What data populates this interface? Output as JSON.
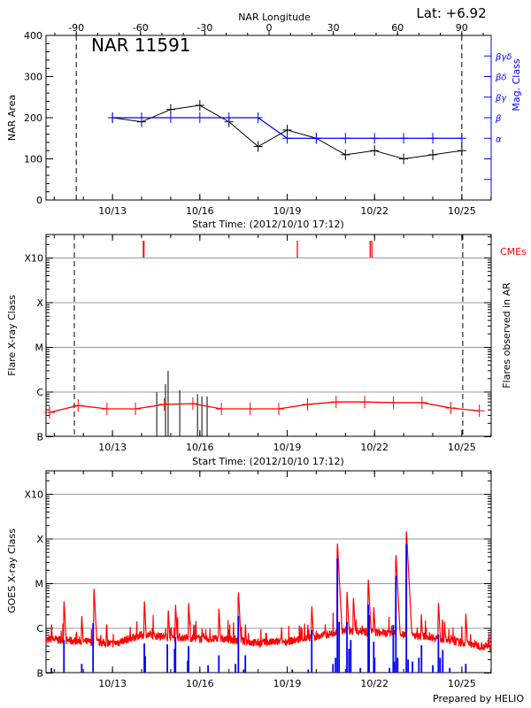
{
  "header": {
    "top_axis_title": "NAR Longitude",
    "latitude": "Lat:  +6.92",
    "region": "NAR 11591",
    "footer": "Prepared by HELIO"
  },
  "colors": {
    "area": "#000000",
    "mag_class": "#0000ff",
    "goes": "#ff0000",
    "events": "#0000ff",
    "cme": "#ff0000",
    "grid": "#999999"
  },
  "chart_data": [
    {
      "type": "line",
      "panel": "nar-area",
      "xlabel": "Start Time: (2012/10/10 17:12)",
      "ylabel": "NAR Area",
      "y2label": "Mag. Class",
      "x_unit": "day of October 2012",
      "xlim": [
        10.717,
        26.01
      ],
      "ylim": [
        0,
        400
      ],
      "yticks": [
        0,
        100,
        200,
        300,
        400
      ],
      "xticks": [
        {
          "t": 13,
          "label": "10/13"
        },
        {
          "t": 16,
          "label": "10/16"
        },
        {
          "t": 19,
          "label": "10/19"
        },
        {
          "t": 22,
          "label": "10/22"
        },
        {
          "t": 25,
          "label": "10/25"
        }
      ],
      "top_axis": {
        "ticks": [
          -90,
          -60,
          -30,
          0,
          30,
          60,
          90
        ],
        "limb_markers": [
          -90,
          90
        ]
      },
      "mag_class_ticks": [
        {
          "area": 50,
          "label": ""
        },
        {
          "area": 100,
          "label": ""
        },
        {
          "area": 150,
          "label": "α"
        },
        {
          "area": 200,
          "label": "β"
        },
        {
          "area": 250,
          "label": "βγ"
        },
        {
          "area": 300,
          "label": "βδ"
        },
        {
          "area": 350,
          "label": "βγδ"
        }
      ],
      "series": [
        {
          "key": "area",
          "x": [
            13,
            14,
            15,
            16,
            17,
            18,
            19,
            20,
            21,
            22,
            23,
            24,
            25
          ],
          "y": [
            200,
            190,
            220,
            230,
            190,
            130,
            170,
            150,
            110,
            120,
            100,
            110,
            120
          ]
        },
        {
          "key": "mag_class",
          "x": [
            13,
            14,
            15,
            16,
            17,
            18,
            19,
            20,
            21,
            22,
            23,
            24,
            25
          ],
          "y": [
            200,
            200,
            200,
            200,
            200,
            200,
            150,
            150,
            150,
            150,
            150,
            150,
            150
          ]
        }
      ]
    },
    {
      "type": "bar",
      "panel": "flare-class",
      "xlabel": "Start Time: (2012/10/10 17:12)",
      "ylabel": "Flare X-ray Class",
      "y2label": "Flares observed in AR",
      "cme_label": "CMEs",
      "y_scale": "log",
      "yticks": [
        "B",
        "C",
        "M",
        "X",
        "X10"
      ],
      "xlim": [
        10.717,
        26.01
      ],
      "limb_markers_t": [
        11.69,
        25.03
      ],
      "flares": [
        {
          "t": 14.52,
          "class": "C1.0"
        },
        {
          "t": 14.82,
          "class": "C1.5"
        },
        {
          "t": 14.91,
          "class": "C3.0"
        },
        {
          "t": 15.31,
          "class": "C1.1"
        },
        {
          "t": 15.92,
          "class": "B9.0"
        },
        {
          "t": 16.07,
          "class": "B8.0"
        },
        {
          "t": 16.25,
          "class": "B8.0"
        }
      ],
      "cmes": [
        14.06,
        14.08,
        19.35,
        21.85,
        21.91
      ],
      "background": {
        "t": [
          10.84,
          11.82,
          12.81,
          13.79,
          14.78,
          15.76,
          16.74,
          17.73,
          18.71,
          19.7,
          20.68,
          21.66,
          22.65,
          23.63,
          24.62,
          25.6
        ],
        "class": [
          "B3.5",
          "B5.0",
          "B4.2",
          "B4.2",
          "B5.3",
          "B5.5",
          "B4.2",
          "B4.2",
          "B4.2",
          "B5.3",
          "B6.0",
          "B6.0",
          "B5.8",
          "B5.8",
          "B4.4",
          "B3.8"
        ]
      }
    },
    {
      "type": "line",
      "panel": "goes",
      "ylabel": "GOES X-ray Class",
      "y_scale": "log",
      "yticks": [
        "B",
        "C",
        "M",
        "X",
        "X10"
      ],
      "xlim": [
        10.717,
        26.01
      ],
      "baseline": {
        "t": [
          10.72,
          11,
          12,
          13,
          14,
          15,
          16,
          17,
          18,
          19,
          20,
          21,
          22,
          23,
          24,
          25,
          26
        ],
        "class": [
          "B5.5",
          "B5.5",
          "B5.0",
          "B4.4",
          "B7.0",
          "B6.3",
          "B5.8",
          "B5.5",
          "B4.6",
          "B5.0",
          "B6.3",
          "B8.7",
          "B8.0",
          "B7.0",
          "B6.3",
          "B4.6",
          "B3.7"
        ]
      },
      "peaks": [
        {
          "t": 10.9,
          "class": "C1.5"
        },
        {
          "t": 11.33,
          "class": "C4.9"
        },
        {
          "t": 11.94,
          "class": "C2.3"
        },
        {
          "t": 12.36,
          "class": "C9.4"
        },
        {
          "t": 12.79,
          "class": "C1.5"
        },
        {
          "t": 14.09,
          "class": "C4.9"
        },
        {
          "t": 14.91,
          "class": "C3.1"
        },
        {
          "t": 15.16,
          "class": "C4.1"
        },
        {
          "t": 15.61,
          "class": "C4.5"
        },
        {
          "t": 16.07,
          "class": "C1.2"
        },
        {
          "t": 16.65,
          "class": "C3.4"
        },
        {
          "t": 17.32,
          "class": "C7.8"
        },
        {
          "t": 17.56,
          "class": "C1.5"
        },
        {
          "t": 18.8,
          "class": "C1.3"
        },
        {
          "t": 19.5,
          "class": "C1.2"
        },
        {
          "t": 19.84,
          "class": "C3.8"
        },
        {
          "t": 20.3,
          "class": "C1.5"
        },
        {
          "t": 20.72,
          "class": "M9.6"
        },
        {
          "t": 21.05,
          "class": "C8.0"
        },
        {
          "t": 21.27,
          "class": "C5.9"
        },
        {
          "t": 21.78,
          "class": "M1.5"
        },
        {
          "t": 21.97,
          "class": "C3.6"
        },
        {
          "t": 22.73,
          "class": "M5.3"
        },
        {
          "t": 23.09,
          "class": "X1.8"
        },
        {
          "t": 23.15,
          "class": "M1.2"
        },
        {
          "t": 23.6,
          "class": "C2.5"
        },
        {
          "t": 24.19,
          "class": "C4.5"
        },
        {
          "t": 24.4,
          "class": "C1.7"
        },
        {
          "t": 25.13,
          "class": "C2.6"
        }
      ],
      "events": [
        {
          "t": 10.9,
          "class": "B1.3"
        },
        {
          "t": 11.33,
          "class": "B5.5"
        },
        {
          "t": 11.94,
          "class": "B1.6"
        },
        {
          "t": 12.33,
          "class": "C1.3"
        },
        {
          "t": 14.09,
          "class": "B4.6"
        },
        {
          "t": 14.12,
          "class": "B2.4"
        },
        {
          "t": 14.88,
          "class": "B4.4"
        },
        {
          "t": 15.13,
          "class": "B3.5"
        },
        {
          "t": 15.16,
          "class": "B6.3"
        },
        {
          "t": 15.58,
          "class": "B1.9"
        },
        {
          "t": 15.61,
          "class": "B4.0"
        },
        {
          "t": 16.28,
          "class": "B1.5"
        },
        {
          "t": 16.65,
          "class": "B2.5"
        },
        {
          "t": 17.22,
          "class": "B1.6"
        },
        {
          "t": 17.32,
          "class": "C1.9"
        },
        {
          "t": 17.5,
          "class": "B1.2"
        },
        {
          "t": 17.56,
          "class": "B2.5"
        },
        {
          "t": 19.17,
          "class": "B1.2"
        },
        {
          "t": 19.72,
          "class": "B1.2"
        },
        {
          "t": 19.84,
          "class": "B9.1"
        },
        {
          "t": 20.57,
          "class": "B1.6"
        },
        {
          "t": 20.66,
          "class": "B2.2"
        },
        {
          "t": 20.72,
          "class": "M3.7"
        },
        {
          "t": 20.78,
          "class": "C1.4"
        },
        {
          "t": 21.05,
          "class": "C1.4"
        },
        {
          "t": 21.12,
          "class": "B3.5"
        },
        {
          "t": 21.18,
          "class": "B5.5"
        },
        {
          "t": 21.51,
          "class": "B1.3"
        },
        {
          "t": 21.78,
          "class": "C3.4"
        },
        {
          "t": 21.81,
          "class": "C2.0"
        },
        {
          "t": 21.97,
          "class": "B5.0"
        },
        {
          "t": 22.0,
          "class": "B2.2"
        },
        {
          "t": 22.51,
          "class": "B1.3"
        },
        {
          "t": 22.64,
          "class": "C1.2"
        },
        {
          "t": 22.67,
          "class": "B1.8"
        },
        {
          "t": 22.73,
          "class": "M1.5"
        },
        {
          "t": 22.79,
          "class": "B2.2"
        },
        {
          "t": 23.09,
          "class": "M7.6"
        },
        {
          "t": 23.15,
          "class": "B2.0"
        },
        {
          "t": 23.3,
          "class": "B1.8"
        },
        {
          "t": 23.52,
          "class": "B2.2"
        },
        {
          "t": 23.61,
          "class": "B4.2"
        },
        {
          "t": 24.0,
          "class": "B1.5"
        },
        {
          "t": 24.19,
          "class": "B7.3"
        },
        {
          "t": 24.25,
          "class": "B2.2"
        },
        {
          "t": 24.34,
          "class": "B3.3"
        },
        {
          "t": 24.58,
          "class": "B1.3"
        },
        {
          "t": 25.13,
          "class": "B1.6"
        }
      ]
    }
  ]
}
